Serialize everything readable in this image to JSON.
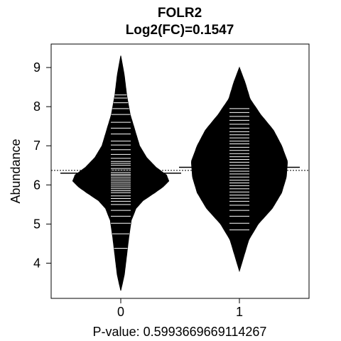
{
  "chart_data": {
    "type": "beanplot",
    "title": "FOLR2",
    "subtitle": "Log2(FC)=0.1547",
    "xlabel": "P-value: 0.5993669669114267",
    "ylabel": "Abundance",
    "categories": [
      "0",
      "1"
    ],
    "ylim": [
      3.1,
      9.6
    ],
    "yticks": [
      4,
      5,
      6,
      7,
      8,
      9
    ],
    "overall_mean": 6.37,
    "grid": false,
    "legend": "none",
    "colors": {
      "bean": "#000000",
      "lines": "#ffffff",
      "background": "#ffffff"
    },
    "series": [
      {
        "category": "0",
        "mean": 6.3,
        "density": [
          [
            3.3,
            0.0
          ],
          [
            3.7,
            0.03
          ],
          [
            4.2,
            0.05
          ],
          [
            4.7,
            0.07
          ],
          [
            5.1,
            0.09
          ],
          [
            5.4,
            0.13
          ],
          [
            5.6,
            0.19
          ],
          [
            5.8,
            0.29
          ],
          [
            5.95,
            0.36
          ],
          [
            6.1,
            0.41
          ],
          [
            6.25,
            0.39
          ],
          [
            6.45,
            0.3
          ],
          [
            6.7,
            0.22
          ],
          [
            7.0,
            0.16
          ],
          [
            7.4,
            0.12
          ],
          [
            7.8,
            0.08
          ],
          [
            8.3,
            0.05
          ],
          [
            8.8,
            0.03
          ],
          [
            9.3,
            0.0
          ]
        ],
        "observations": [
          4.38,
          4.75,
          5.02,
          5.2,
          5.35,
          5.5,
          5.58,
          5.65,
          5.72,
          5.8,
          5.85,
          5.9,
          5.95,
          6.0,
          6.05,
          6.1,
          6.15,
          6.2,
          6.25,
          6.28,
          6.32,
          6.38,
          6.42,
          6.5,
          6.55,
          6.6,
          6.68,
          6.78,
          6.9,
          7.02,
          7.12,
          7.3,
          7.45,
          7.6,
          7.8,
          7.95,
          8.1,
          8.22,
          8.3
        ]
      },
      {
        "category": "1",
        "mean": 6.45,
        "density": [
          [
            3.8,
            0.0
          ],
          [
            4.2,
            0.04
          ],
          [
            4.6,
            0.08
          ],
          [
            5.0,
            0.16
          ],
          [
            5.4,
            0.28
          ],
          [
            5.8,
            0.36
          ],
          [
            6.2,
            0.4
          ],
          [
            6.6,
            0.41
          ],
          [
            7.0,
            0.36
          ],
          [
            7.4,
            0.29
          ],
          [
            7.8,
            0.18
          ],
          [
            8.2,
            0.09
          ],
          [
            8.6,
            0.05
          ],
          [
            9.0,
            0.0
          ]
        ],
        "observations": [
          4.85,
          5.02,
          5.2,
          5.35,
          5.48,
          5.58,
          5.66,
          5.74,
          5.82,
          5.9,
          5.98,
          6.05,
          6.12,
          6.2,
          6.28,
          6.35,
          6.42,
          6.5,
          6.58,
          6.65,
          6.72,
          6.8,
          6.88,
          6.96,
          7.05,
          7.12,
          7.2,
          7.28,
          7.36,
          7.45,
          7.55,
          7.65,
          7.75,
          7.85,
          7.95
        ]
      }
    ]
  }
}
